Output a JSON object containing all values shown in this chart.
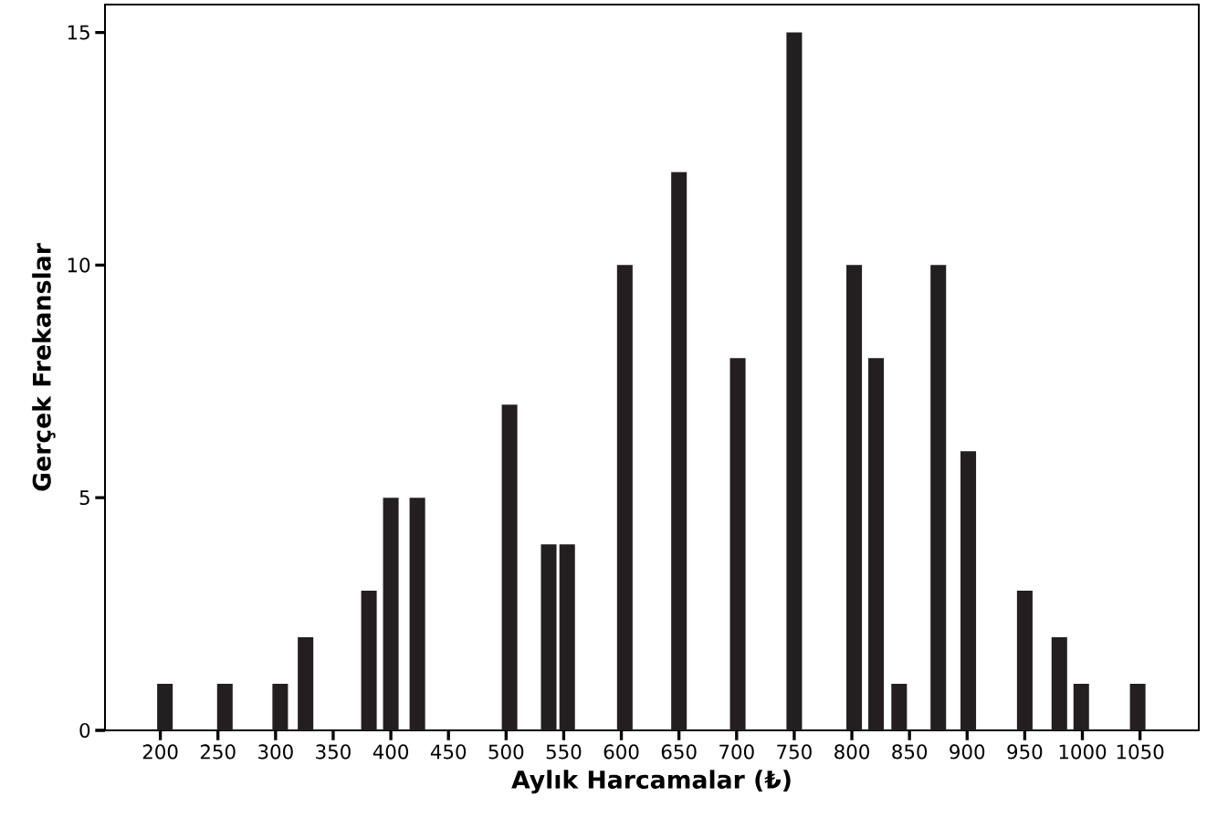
{
  "chart_data": {
    "type": "bar",
    "xlabel": "Aylık Harcamalar (₺)",
    "ylabel": "Gerçek Frekanslar",
    "x": [
      204,
      256,
      304,
      326,
      381,
      400,
      423,
      503,
      537,
      553,
      603,
      650,
      701,
      750,
      802,
      821,
      841,
      875,
      901,
      950,
      980,
      999,
      1048
    ],
    "values": [
      1,
      1,
      1,
      2,
      3,
      5,
      5,
      7,
      4,
      4,
      10,
      12,
      8,
      15,
      10,
      8,
      1,
      10,
      6,
      3,
      2,
      1,
      1
    ],
    "color": "#231f20",
    "xlim": [
      152,
      1101
    ],
    "ylim": [
      0,
      15.6
    ],
    "xticks": [
      200,
      250,
      300,
      350,
      400,
      450,
      500,
      550,
      600,
      650,
      700,
      750,
      800,
      850,
      900,
      950,
      1000,
      1050
    ],
    "yticks": [
      0,
      5,
      10,
      15
    ]
  }
}
